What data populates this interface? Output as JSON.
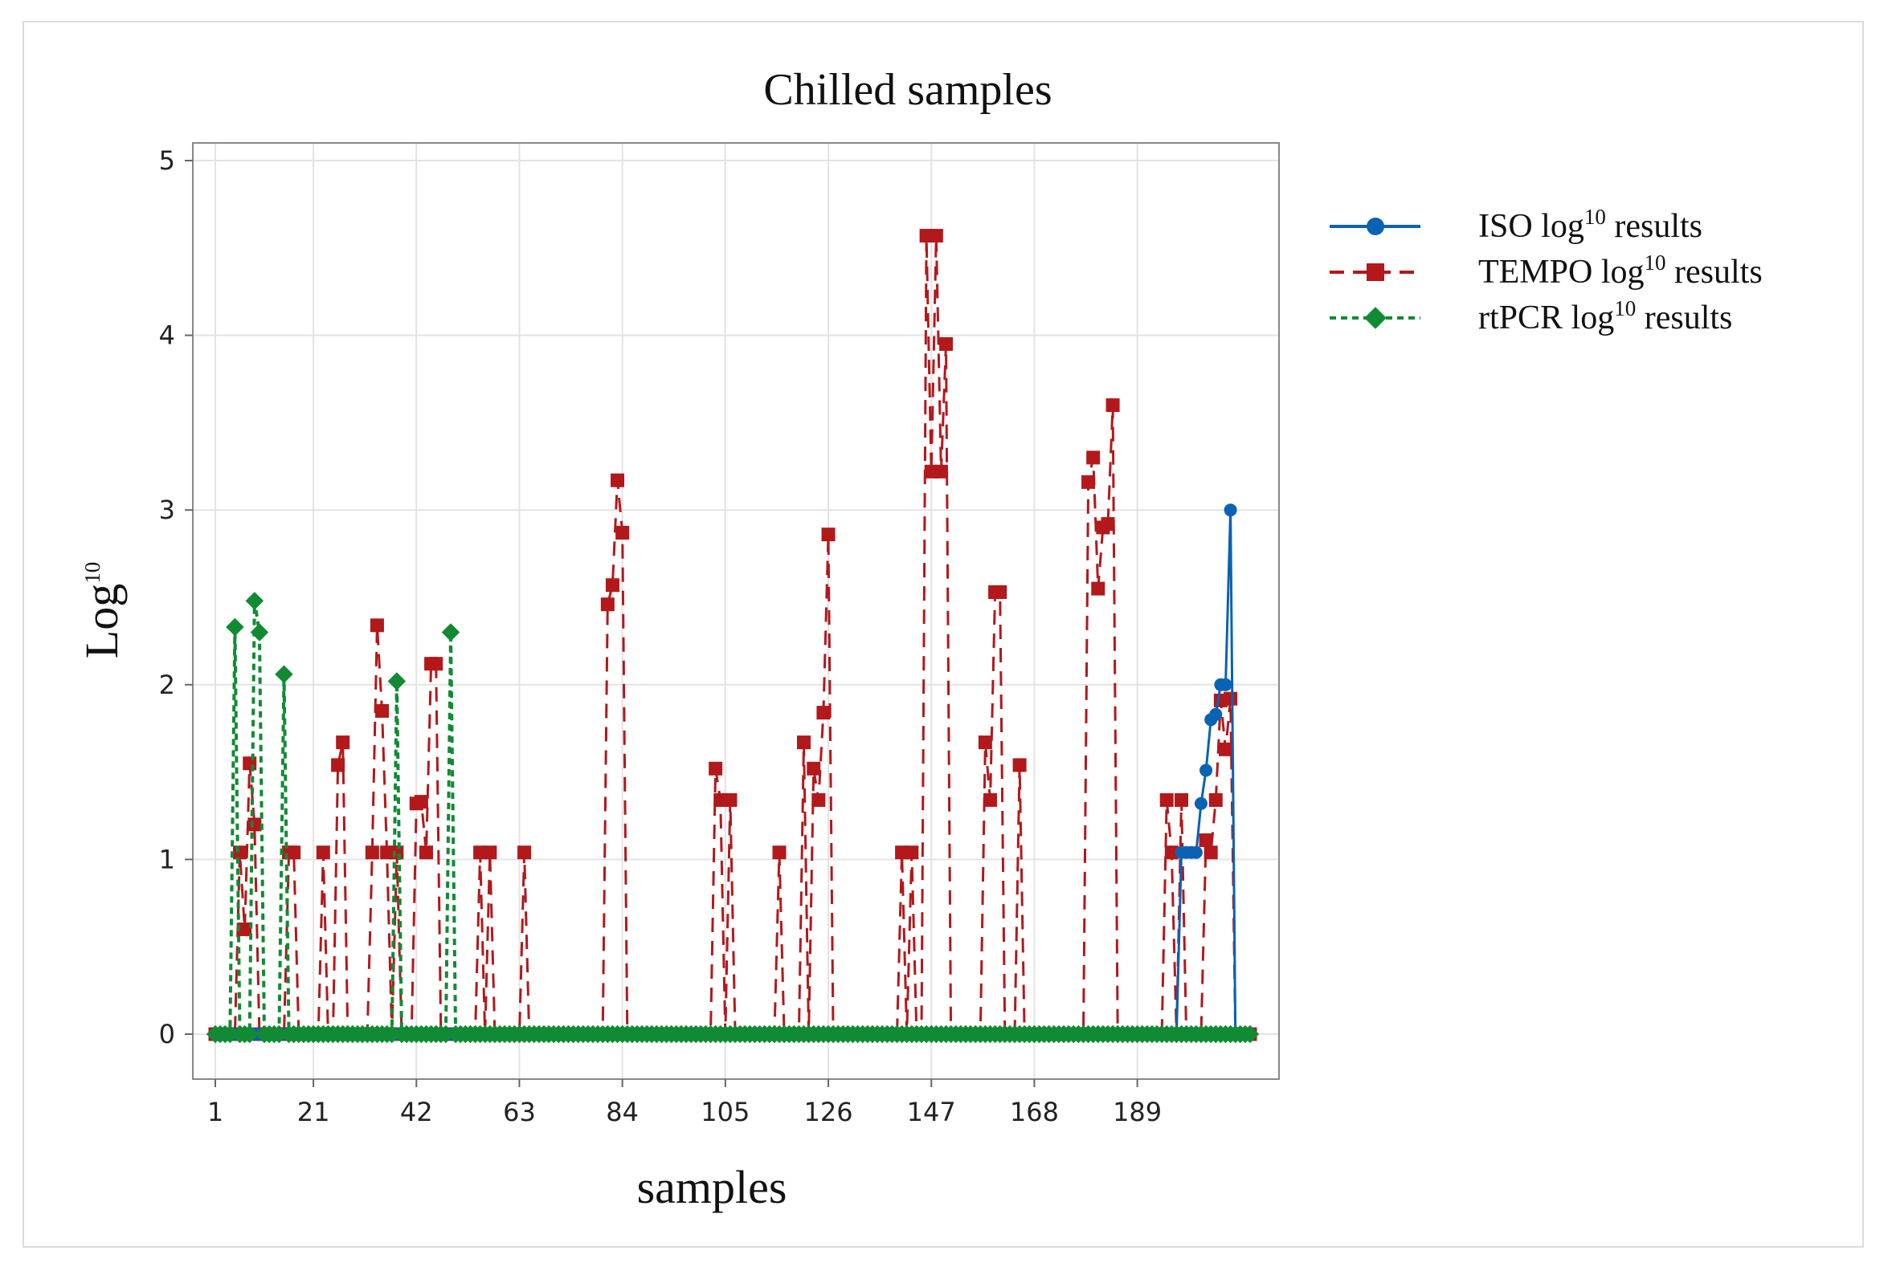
{
  "chart_data": {
    "type": "line",
    "title": "Chilled samples",
    "xlabel": "samples",
    "ylabel": "Log",
    "ylabel_sup": "10",
    "xlim": [
      1,
      212
    ],
    "ylim": [
      -0.25,
      5.1
    ],
    "x_ticks": [
      1,
      21,
      42,
      63,
      84,
      105,
      126,
      147,
      168,
      189
    ],
    "y_ticks": [
      0,
      1,
      2,
      3,
      4,
      5
    ],
    "grid": true,
    "legend_position": "right",
    "series": [
      {
        "name": "ISO log10 results",
        "legend_pre": "ISO log",
        "legend_sup": "10",
        "legend_post": " results",
        "color": "#0a62b4",
        "marker": "circle",
        "dash": "solid",
        "points": [
          [
            198,
            1.04
          ],
          [
            199,
            1.04
          ],
          [
            200,
            1.04
          ],
          [
            201,
            1.04
          ],
          [
            202,
            1.32
          ],
          [
            203,
            1.51
          ],
          [
            204,
            1.8
          ],
          [
            205,
            1.83
          ],
          [
            206,
            2.0
          ],
          [
            207,
            2.0
          ],
          [
            208,
            3.0
          ]
        ]
      },
      {
        "name": "TEMPO log10 results",
        "legend_pre": "TEMPO log",
        "legend_sup": "10",
        "legend_post": " results",
        "color": "#b3181b",
        "marker": "square",
        "dash": "long",
        "points": [
          [
            6,
            1.04
          ],
          [
            7,
            0.6
          ],
          [
            8,
            1.55
          ],
          [
            9,
            1.2
          ],
          [
            10,
            0.0
          ],
          [
            16,
            1.04
          ],
          [
            17,
            1.04
          ],
          [
            23,
            1.04
          ],
          [
            26,
            1.54
          ],
          [
            27,
            1.67
          ],
          [
            33,
            1.04
          ],
          [
            34,
            2.34
          ],
          [
            35,
            1.85
          ],
          [
            36,
            1.04
          ],
          [
            38,
            1.04
          ],
          [
            42,
            1.32
          ],
          [
            43,
            1.33
          ],
          [
            44,
            1.04
          ],
          [
            45,
            2.12
          ],
          [
            46,
            2.12
          ],
          [
            55,
            1.04
          ],
          [
            57,
            1.04
          ],
          [
            64,
            1.04
          ],
          [
            81,
            2.46
          ],
          [
            82,
            2.57
          ],
          [
            83,
            3.17
          ],
          [
            84,
            2.87
          ],
          [
            103,
            1.52
          ],
          [
            104,
            1.34
          ],
          [
            106,
            1.34
          ],
          [
            116,
            1.04
          ],
          [
            121,
            1.67
          ],
          [
            123,
            1.52
          ],
          [
            124,
            1.34
          ],
          [
            125,
            1.84
          ],
          [
            126,
            2.86
          ],
          [
            141,
            1.04
          ],
          [
            143,
            1.04
          ],
          [
            146,
            4.57
          ],
          [
            147,
            3.22
          ],
          [
            148,
            4.57
          ],
          [
            149,
            3.22
          ],
          [
            150,
            3.95
          ],
          [
            158,
            1.67
          ],
          [
            159,
            1.34
          ],
          [
            160,
            2.53
          ],
          [
            161,
            2.53
          ],
          [
            165,
            1.54
          ],
          [
            179,
            3.16
          ],
          [
            180,
            3.3
          ],
          [
            181,
            2.55
          ],
          [
            182,
            2.9
          ],
          [
            183,
            2.92
          ],
          [
            184,
            3.6
          ],
          [
            195,
            1.34
          ],
          [
            196,
            1.04
          ],
          [
            198,
            1.34
          ],
          [
            203,
            1.11
          ],
          [
            204,
            1.04
          ],
          [
            205,
            1.34
          ],
          [
            206,
            1.91
          ],
          [
            207,
            1.63
          ],
          [
            208,
            1.92
          ]
        ]
      },
      {
        "name": "rtPCR log10 results",
        "legend_pre": "rtPCR log",
        "legend_sup": "10",
        "legend_post": " results",
        "color": "#108b34",
        "marker": "diamond",
        "dash": "short",
        "points": [
          [
            5,
            2.33
          ],
          [
            9,
            2.48
          ],
          [
            10,
            2.3
          ],
          [
            15,
            2.06
          ],
          [
            38,
            2.02
          ],
          [
            49,
            2.3
          ]
        ]
      }
    ]
  }
}
